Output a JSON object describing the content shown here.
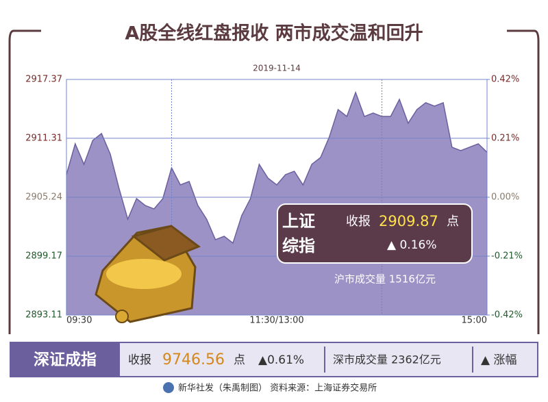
{
  "chart_data": {
    "type": "area",
    "title": "A股全线红盘报收  两市成交温和回升",
    "subtitle": "2019-11-14",
    "categories": [
      "09:30",
      null,
      null,
      null,
      null,
      null,
      null,
      null,
      null,
      null,
      null,
      null,
      null,
      null,
      null,
      null,
      null,
      null,
      null,
      null,
      null,
      null,
      null,
      null,
      "11:30/13:00",
      null,
      null,
      null,
      null,
      null,
      null,
      null,
      null,
      null,
      null,
      null,
      null,
      null,
      null,
      null,
      null,
      null,
      null,
      null,
      null,
      null,
      null,
      null,
      "15:00"
    ],
    "values": [
      2907.57,
      2910.74,
      2908.63,
      2911.09,
      2911.8,
      2909.68,
      2906.16,
      2902.98,
      2905.1,
      2904.39,
      2904.04,
      2905.1,
      2908.27,
      2906.51,
      2906.86,
      2904.39,
      2902.98,
      2900.87,
      2901.22,
      2900.52,
      2903.34,
      2905.1,
      2908.63,
      2907.21,
      2906.51,
      2907.57,
      2907.92,
      2906.51,
      2908.63,
      2909.33,
      2911.45,
      2914.27,
      2913.56,
      2916.03,
      2913.56,
      2913.91,
      2913.56,
      2913.56,
      2915.32,
      2912.86,
      2914.27,
      2914.97,
      2914.62,
      2914.97,
      2910.39,
      2910.04,
      2910.39,
      2910.74,
      2909.87
    ],
    "color": "#9c92c6",
    "line_color": "#6b5f9e",
    "ylim": [
      2893.11,
      2917.37
    ],
    "yticks": [
      2893.11,
      2899.17,
      2905.24,
      2911.31,
      2917.37
    ],
    "y2lim": [
      -0.42,
      0.42
    ],
    "y2ticks": [
      {
        "value": -0.42,
        "label": "-0.42%"
      },
      {
        "value": -0.21,
        "label": "-0.21%"
      },
      {
        "value": 0,
        "label": "0.00%"
      },
      {
        "value": 0.21,
        "label": "0.21%"
      },
      {
        "value": 0.42,
        "label": "0.42%"
      }
    ],
    "grid": true
  },
  "info_box": {
    "name_line1": "上证",
    "name_line2": "综指",
    "close_label": "收报",
    "close": "2909.87",
    "unit": "点",
    "change": "▲ 0.16%",
    "volume": "沪市成交量  1516亿元"
  },
  "bottom_bar": {
    "name": "深证成指",
    "close_label": "收报",
    "close": "9746.56",
    "unit": "点",
    "change": "▲0.61%",
    "volume": "深市成交量  2362亿元",
    "legend": "▲ 涨幅"
  },
  "footer": "新华社发（朱禹制图）  资料来源：上海证券交易所"
}
